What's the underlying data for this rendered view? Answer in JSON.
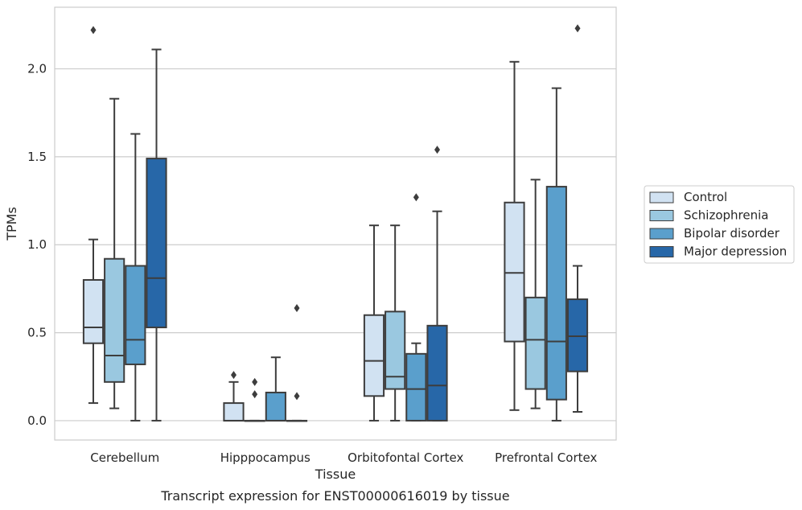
{
  "chart_data": {
    "type": "boxplot",
    "xlabel": "Tissue",
    "ylabel": "TPMs",
    "caption": "Transcript expression for ENST00000616019 by tissue",
    "ylim": [
      -0.11,
      2.35
    ],
    "yticks": [
      0.0,
      0.5,
      1.0,
      1.5,
      2.0
    ],
    "ytick_labels": [
      "0.0",
      "0.5",
      "1.0",
      "1.5",
      "2.0"
    ],
    "grid": "horizontal",
    "legend_position": "right",
    "categories": [
      "Cerebellum",
      "Hipppocampus",
      "Orbitofontal Cortex",
      "Prefrontal Cortex"
    ],
    "series": [
      {
        "name": "Control",
        "color": "#d1e2f2",
        "boxes": [
          {
            "whislo": 0.1,
            "q1": 0.44,
            "med": 0.53,
            "q3": 0.8,
            "whishi": 1.03,
            "fliers": [
              2.22
            ]
          },
          {
            "whislo": 0.0,
            "q1": 0.0,
            "med": 0.0,
            "q3": 0.1,
            "whishi": 0.22,
            "fliers": [
              0.26
            ]
          },
          {
            "whislo": 0.0,
            "q1": 0.14,
            "med": 0.34,
            "q3": 0.6,
            "whishi": 1.11,
            "fliers": []
          },
          {
            "whislo": 0.06,
            "q1": 0.45,
            "med": 0.84,
            "q3": 1.24,
            "whishi": 2.04,
            "fliers": []
          }
        ]
      },
      {
        "name": "Schizophrenia",
        "color": "#9ac8e0",
        "boxes": [
          {
            "whislo": 0.07,
            "q1": 0.22,
            "med": 0.37,
            "q3": 0.92,
            "whishi": 1.83,
            "fliers": []
          },
          {
            "whislo": 0.0,
            "q1": 0.0,
            "med": 0.0,
            "q3": 0.0,
            "whishi": 0.0,
            "fliers": [
              0.15,
              0.22
            ]
          },
          {
            "whislo": 0.0,
            "q1": 0.18,
            "med": 0.25,
            "q3": 0.62,
            "whishi": 1.11,
            "fliers": []
          },
          {
            "whislo": 0.07,
            "q1": 0.18,
            "med": 0.46,
            "q3": 0.7,
            "whishi": 1.37,
            "fliers": []
          }
        ]
      },
      {
        "name": "Bipolar disorder",
        "color": "#5a9fcc",
        "boxes": [
          {
            "whislo": 0.0,
            "q1": 0.32,
            "med": 0.46,
            "q3": 0.88,
            "whishi": 1.63,
            "fliers": []
          },
          {
            "whislo": 0.0,
            "q1": 0.0,
            "med": 0.0,
            "q3": 0.16,
            "whishi": 0.36,
            "fliers": []
          },
          {
            "whislo": 0.0,
            "q1": 0.0,
            "med": 0.18,
            "q3": 0.38,
            "whishi": 0.44,
            "fliers": [
              1.27
            ]
          },
          {
            "whislo": 0.0,
            "q1": 0.12,
            "med": 0.45,
            "q3": 1.33,
            "whishi": 1.89,
            "fliers": []
          }
        ]
      },
      {
        "name": "Major depression",
        "color": "#2767a8",
        "boxes": [
          {
            "whislo": 0.0,
            "q1": 0.53,
            "med": 0.81,
            "q3": 1.49,
            "whishi": 2.11,
            "fliers": []
          },
          {
            "whislo": 0.0,
            "q1": 0.0,
            "med": 0.0,
            "q3": 0.0,
            "whishi": 0.0,
            "fliers": [
              0.14,
              0.64
            ]
          },
          {
            "whislo": 0.0,
            "q1": 0.0,
            "med": 0.2,
            "q3": 0.54,
            "whishi": 1.19,
            "fliers": [
              1.54
            ]
          },
          {
            "whislo": 0.05,
            "q1": 0.28,
            "med": 0.48,
            "q3": 0.69,
            "whishi": 0.88,
            "fliers": [
              2.23
            ]
          }
        ]
      }
    ]
  }
}
